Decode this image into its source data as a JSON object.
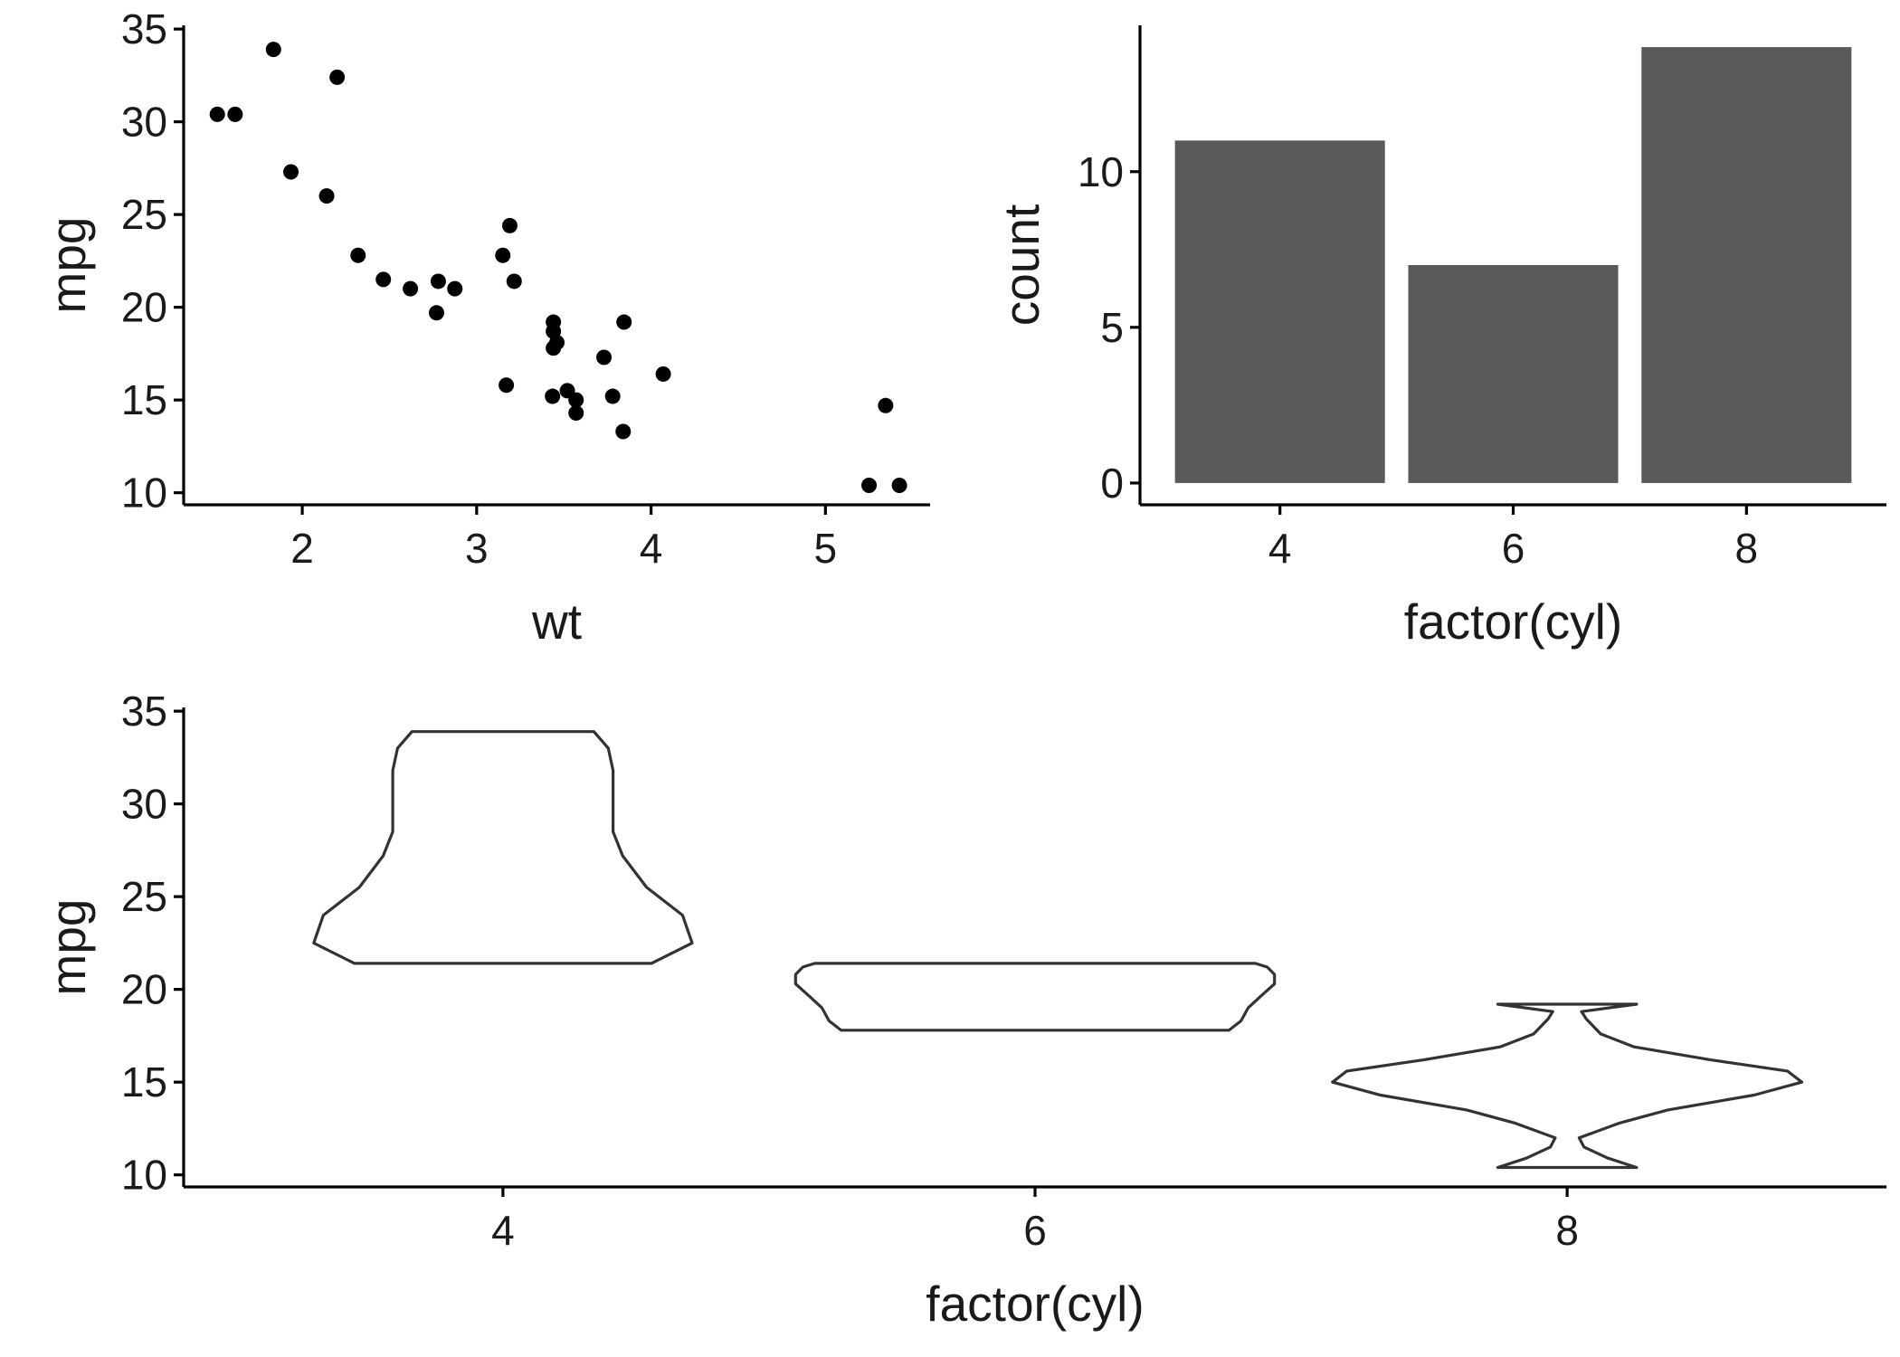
{
  "chart_data": [
    {
      "type": "scatter",
      "xlabel": "wt",
      "ylabel": "mpg",
      "xlim": [
        1.32,
        5.6
      ],
      "ylim": [
        9.35,
        35.2
      ],
      "xticks": [
        2,
        3,
        4,
        5
      ],
      "yticks": [
        10,
        15,
        20,
        25,
        30,
        35
      ],
      "grid": false,
      "points": [
        {
          "x": 1.513,
          "y": 30.4
        },
        {
          "x": 1.615,
          "y": 30.4
        },
        {
          "x": 1.835,
          "y": 33.9
        },
        {
          "x": 1.935,
          "y": 27.3
        },
        {
          "x": 2.14,
          "y": 26.0
        },
        {
          "x": 2.2,
          "y": 32.4
        },
        {
          "x": 2.32,
          "y": 22.8
        },
        {
          "x": 2.465,
          "y": 21.5
        },
        {
          "x": 2.62,
          "y": 21.0
        },
        {
          "x": 2.77,
          "y": 19.7
        },
        {
          "x": 2.78,
          "y": 21.4
        },
        {
          "x": 2.875,
          "y": 21.0
        },
        {
          "x": 3.15,
          "y": 22.8
        },
        {
          "x": 3.17,
          "y": 15.8
        },
        {
          "x": 3.19,
          "y": 24.4
        },
        {
          "x": 3.215,
          "y": 21.4
        },
        {
          "x": 3.435,
          "y": 15.2
        },
        {
          "x": 3.44,
          "y": 18.7
        },
        {
          "x": 3.44,
          "y": 19.2
        },
        {
          "x": 3.44,
          "y": 17.8
        },
        {
          "x": 3.46,
          "y": 18.1
        },
        {
          "x": 3.52,
          "y": 15.5
        },
        {
          "x": 3.57,
          "y": 14.3
        },
        {
          "x": 3.57,
          "y": 15.0
        },
        {
          "x": 3.73,
          "y": 17.3
        },
        {
          "x": 3.78,
          "y": 15.2
        },
        {
          "x": 3.84,
          "y": 13.3
        },
        {
          "x": 3.845,
          "y": 19.2
        },
        {
          "x": 4.07,
          "y": 16.4
        },
        {
          "x": 5.25,
          "y": 10.4
        },
        {
          "x": 5.345,
          "y": 14.7
        },
        {
          "x": 5.424,
          "y": 10.4
        }
      ]
    },
    {
      "type": "bar",
      "xlabel": "factor(cyl)",
      "ylabel": "count",
      "categories": [
        "4",
        "6",
        "8"
      ],
      "values": [
        11,
        7,
        14
      ],
      "ylim": [
        -0.7,
        14.7
      ],
      "yticks": [
        0,
        5,
        10
      ],
      "grid": false
    },
    {
      "type": "violin",
      "xlabel": "factor(cyl)",
      "ylabel": "mpg",
      "categories": [
        "4",
        "6",
        "8"
      ],
      "ylim": [
        9.35,
        35.2
      ],
      "yticks": [
        10,
        15,
        20,
        25,
        30,
        35
      ],
      "grid": false,
      "violins": [
        {
          "category": "4",
          "min": 21.4,
          "max": 33.9,
          "profile": [
            [
              21.4,
              0.62
            ],
            [
              22.5,
              0.79
            ],
            [
              24.0,
              0.75
            ],
            [
              25.5,
              0.6
            ],
            [
              27.2,
              0.5
            ],
            [
              28.5,
              0.46
            ],
            [
              30.0,
              0.46
            ],
            [
              31.8,
              0.46
            ],
            [
              33.0,
              0.44
            ],
            [
              33.9,
              0.38
            ]
          ]
        },
        {
          "category": "6",
          "min": 17.8,
          "max": 21.4,
          "profile": [
            [
              17.8,
              0.81
            ],
            [
              18.3,
              0.86
            ],
            [
              19.0,
              0.89
            ],
            [
              19.6,
              0.94
            ],
            [
              20.3,
              1.0
            ],
            [
              20.8,
              1.0
            ],
            [
              21.2,
              0.97
            ],
            [
              21.4,
              0.92
            ]
          ]
        },
        {
          "category": "8",
          "min": 10.4,
          "max": 19.2,
          "profile": [
            [
              10.4,
              0.29
            ],
            [
              10.9,
              0.17
            ],
            [
              11.5,
              0.07
            ],
            [
              12.0,
              0.05
            ],
            [
              12.8,
              0.22
            ],
            [
              13.5,
              0.42
            ],
            [
              14.3,
              0.78
            ],
            [
              15.0,
              0.98
            ],
            [
              15.6,
              0.92
            ],
            [
              16.2,
              0.6
            ],
            [
              16.9,
              0.28
            ],
            [
              17.6,
              0.14
            ],
            [
              18.4,
              0.08
            ],
            [
              18.8,
              0.06
            ],
            [
              19.2,
              0.29
            ]
          ]
        }
      ]
    }
  ]
}
